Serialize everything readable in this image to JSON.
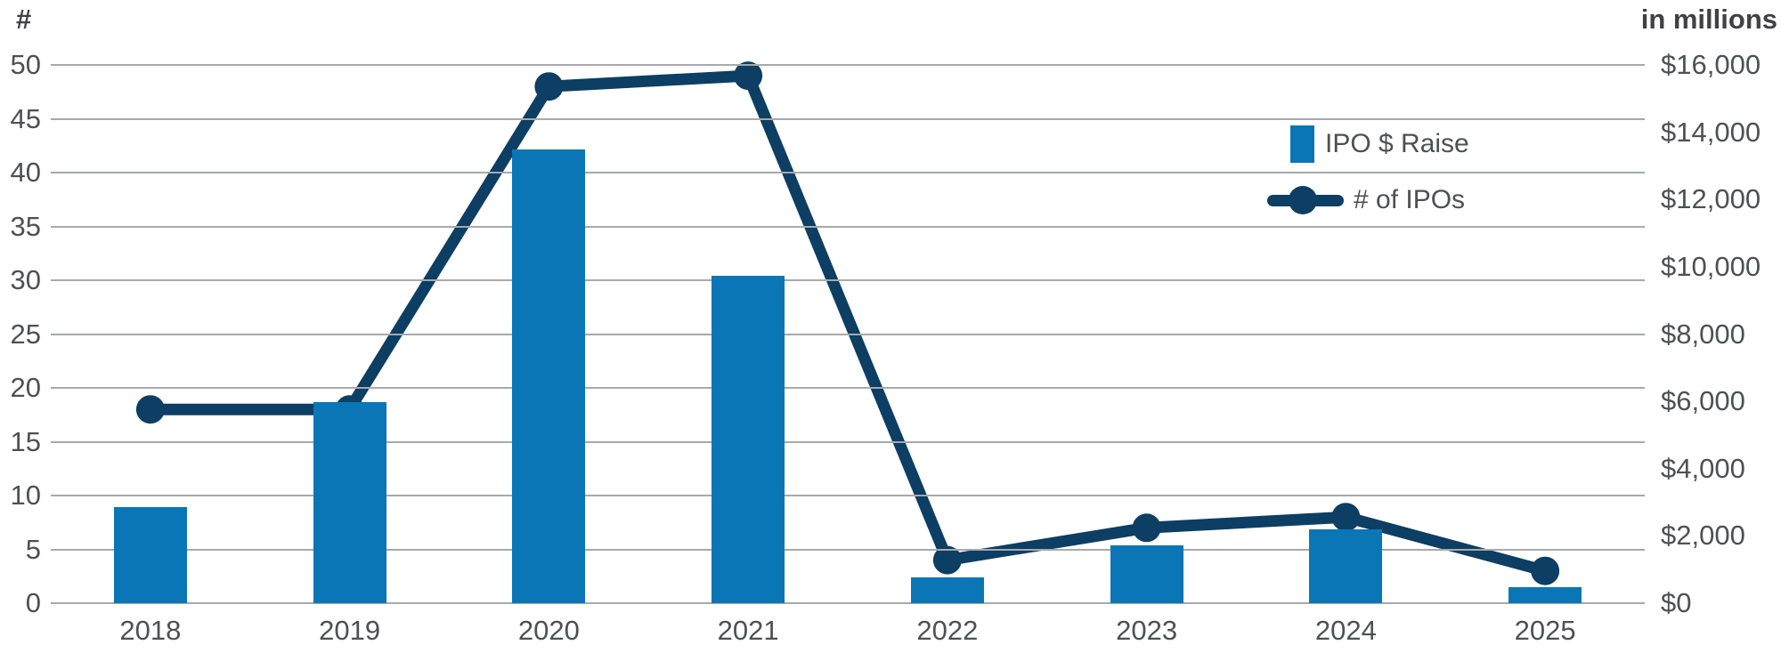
{
  "chart_data": {
    "type": "combo",
    "categories": [
      "2018",
      "2019",
      "2020",
      "2021",
      "2022",
      "2023",
      "2024",
      "2025"
    ],
    "series": [
      {
        "name": "IPO $ Raise",
        "type": "bar",
        "axis": "right",
        "values": [
          2860,
          5980,
          13500,
          9730,
          770,
          1720,
          2200,
          480
        ]
      },
      {
        "name": "# of IPOs",
        "type": "line",
        "axis": "left",
        "values": [
          18,
          18,
          48,
          49,
          4,
          7,
          8,
          3
        ]
      }
    ],
    "left_axis": {
      "title": "#",
      "min": 0,
      "max": 50,
      "tick_step": 5,
      "tick_values": [
        0,
        5,
        10,
        15,
        20,
        25,
        30,
        35,
        40,
        45,
        50
      ],
      "tick_labels": [
        "0",
        "5",
        "10",
        "15",
        "20",
        "25",
        "30",
        "35",
        "40",
        "45",
        "50"
      ]
    },
    "right_axis": {
      "title": "in millions",
      "min": 0,
      "max": 16000,
      "tick_step": 2000,
      "tick_values": [
        0,
        2000,
        4000,
        6000,
        8000,
        10000,
        12000,
        14000,
        16000
      ],
      "tick_labels": [
        "$0",
        "$2,000",
        "$4,000",
        "$6,000",
        "$8,000",
        "$10,000",
        "$12,000",
        "$14,000",
        "$16,000"
      ]
    },
    "legend": {
      "position": "top-right",
      "items": [
        {
          "label": "IPO $ Raise",
          "marker": "bar-swatch"
        },
        {
          "label": "# of IPOs",
          "marker": "line-dot-swatch"
        }
      ]
    },
    "grid": true,
    "colors": {
      "bar": "#0a76b6",
      "line": "#0d3e63",
      "grid": "#a7a9ac",
      "tick_text": "#4f5052",
      "header_text": "#414143"
    }
  }
}
